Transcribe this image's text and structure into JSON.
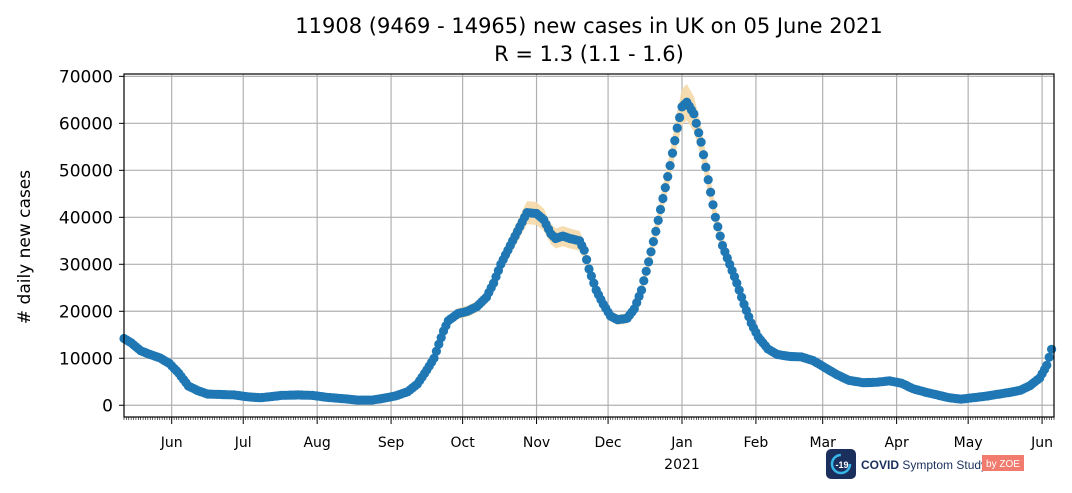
{
  "chart_data": {
    "type": "scatter",
    "title": "11908 (9469 - 14965) new cases in UK on 05 June 2021",
    "subtitle": "R = 1.3 (1.1 - 1.6)",
    "xlabel": "",
    "ylabel": "# daily new cases",
    "ylim": [
      -2500,
      70500
    ],
    "xlim": [
      "2020-05-12",
      "2021-06-06"
    ],
    "grid": true,
    "y_ticks": [
      "0",
      "10000",
      "20000",
      "30000",
      "40000",
      "50000",
      "60000",
      "70000"
    ],
    "x_ticks": [
      {
        "date": "2020-06-01",
        "label": "Jun"
      },
      {
        "date": "2020-07-01",
        "label": "Jul"
      },
      {
        "date": "2020-08-01",
        "label": "Aug"
      },
      {
        "date": "2020-09-01",
        "label": "Sep"
      },
      {
        "date": "2020-10-01",
        "label": "Oct"
      },
      {
        "date": "2020-11-01",
        "label": "Nov"
      },
      {
        "date": "2020-12-01",
        "label": "Dec"
      },
      {
        "date": "2021-01-01",
        "label": "Jan"
      },
      {
        "date": "2021-02-01",
        "label": "Feb"
      },
      {
        "date": "2021-03-01",
        "label": "Mar"
      },
      {
        "date": "2021-04-01",
        "label": "Apr"
      },
      {
        "date": "2021-05-01",
        "label": "May"
      },
      {
        "date": "2021-06-01",
        "label": "Jun"
      }
    ],
    "year_label": {
      "date": "2021-01-01",
      "label": "2021"
    },
    "colors": {
      "points": "#1f77b4",
      "band": "#f5d9a8",
      "grid": "#b0b0b0"
    },
    "series": [
      {
        "points": [
          [
            "2020-05-12",
            14200
          ],
          [
            "2020-05-15",
            13300
          ],
          [
            "2020-05-19",
            11600
          ],
          [
            "2020-05-23",
            10800
          ],
          [
            "2020-05-27",
            10100
          ],
          [
            "2020-05-31",
            8900
          ],
          [
            "2020-06-04",
            6800
          ],
          [
            "2020-06-08",
            4100
          ],
          [
            "2020-06-12",
            3100
          ],
          [
            "2020-06-16",
            2400
          ],
          [
            "2020-06-21",
            2300
          ],
          [
            "2020-06-27",
            2200
          ],
          [
            "2020-07-03",
            1800
          ],
          [
            "2020-07-08",
            1600
          ],
          [
            "2020-07-12",
            1800
          ],
          [
            "2020-07-17",
            2100
          ],
          [
            "2020-07-24",
            2200
          ],
          [
            "2020-07-30",
            2100
          ],
          [
            "2020-08-05",
            1700
          ],
          [
            "2020-08-12",
            1400
          ],
          [
            "2020-08-18",
            1100
          ],
          [
            "2020-08-24",
            1100
          ],
          [
            "2020-08-29",
            1500
          ],
          [
            "2020-09-03",
            2000
          ],
          [
            "2020-09-08",
            2900
          ],
          [
            "2020-09-12",
            4500
          ],
          [
            "2020-09-16",
            7500
          ],
          [
            "2020-09-19",
            10000
          ],
          [
            "2020-09-21",
            13000
          ],
          [
            "2020-09-23",
            15800
          ],
          [
            "2020-09-25",
            18000
          ],
          [
            "2020-09-29",
            19500
          ],
          [
            "2020-10-03",
            20000
          ],
          [
            "2020-10-07",
            21000
          ],
          [
            "2020-10-11",
            23000
          ],
          [
            "2020-10-14",
            26000
          ],
          [
            "2020-10-17",
            30000
          ],
          [
            "2020-10-20",
            33000
          ],
          [
            "2020-10-23",
            36000
          ],
          [
            "2020-10-26",
            39000
          ],
          [
            "2020-10-28",
            41000
          ],
          [
            "2020-11-01",
            40800
          ],
          [
            "2020-11-04",
            39500
          ],
          [
            "2020-11-07",
            36500
          ],
          [
            "2020-11-09",
            35500
          ],
          [
            "2020-11-12",
            36000
          ],
          [
            "2020-11-15",
            35500
          ],
          [
            "2020-11-19",
            35000
          ],
          [
            "2020-11-21",
            33000
          ],
          [
            "2020-11-23",
            29000
          ],
          [
            "2020-11-26",
            24500
          ],
          [
            "2020-11-29",
            21500
          ],
          [
            "2020-12-02",
            19000
          ],
          [
            "2020-12-05",
            18200
          ],
          [
            "2020-12-09",
            18500
          ],
          [
            "2020-12-12",
            20500
          ],
          [
            "2020-12-15",
            24500
          ],
          [
            "2020-12-18",
            30500
          ],
          [
            "2020-12-21",
            37000
          ],
          [
            "2020-12-24",
            44000
          ],
          [
            "2020-12-27",
            51000
          ],
          [
            "2020-12-30",
            59000
          ],
          [
            "2021-01-01",
            63500
          ],
          [
            "2021-01-03",
            64500
          ],
          [
            "2021-01-06",
            62000
          ],
          [
            "2021-01-09",
            56000
          ],
          [
            "2021-01-12",
            48000
          ],
          [
            "2021-01-15",
            40000
          ],
          [
            "2021-01-18",
            34000
          ],
          [
            "2021-01-21",
            30000
          ],
          [
            "2021-01-24",
            26000
          ],
          [
            "2021-01-27",
            21500
          ],
          [
            "2021-01-30",
            17500
          ],
          [
            "2021-02-02",
            14500
          ],
          [
            "2021-02-06",
            12000
          ],
          [
            "2021-02-10",
            10800
          ],
          [
            "2021-02-15",
            10400
          ],
          [
            "2021-02-20",
            10300
          ],
          [
            "2021-02-25",
            9500
          ],
          [
            "2021-03-02",
            8000
          ],
          [
            "2021-03-07",
            6500
          ],
          [
            "2021-03-12",
            5300
          ],
          [
            "2021-03-18",
            4800
          ],
          [
            "2021-03-24",
            4900
          ],
          [
            "2021-03-29",
            5200
          ],
          [
            "2021-04-03",
            4700
          ],
          [
            "2021-04-08",
            3500
          ],
          [
            "2021-04-13",
            2800
          ],
          [
            "2021-04-18",
            2200
          ],
          [
            "2021-04-23",
            1600
          ],
          [
            "2021-04-28",
            1300
          ],
          [
            "2021-05-03",
            1600
          ],
          [
            "2021-05-08",
            1900
          ],
          [
            "2021-05-13",
            2300
          ],
          [
            "2021-05-18",
            2700
          ],
          [
            "2021-05-23",
            3200
          ],
          [
            "2021-05-27",
            4200
          ],
          [
            "2021-05-31",
            5800
          ],
          [
            "2021-06-03",
            8500
          ],
          [
            "2021-06-05",
            11908
          ]
        ]
      }
    ]
  },
  "logo": {
    "badge_text": "-19",
    "name_bold": "COVID",
    "name_rest": " Symptom Study",
    "partner": "by ZOE"
  }
}
